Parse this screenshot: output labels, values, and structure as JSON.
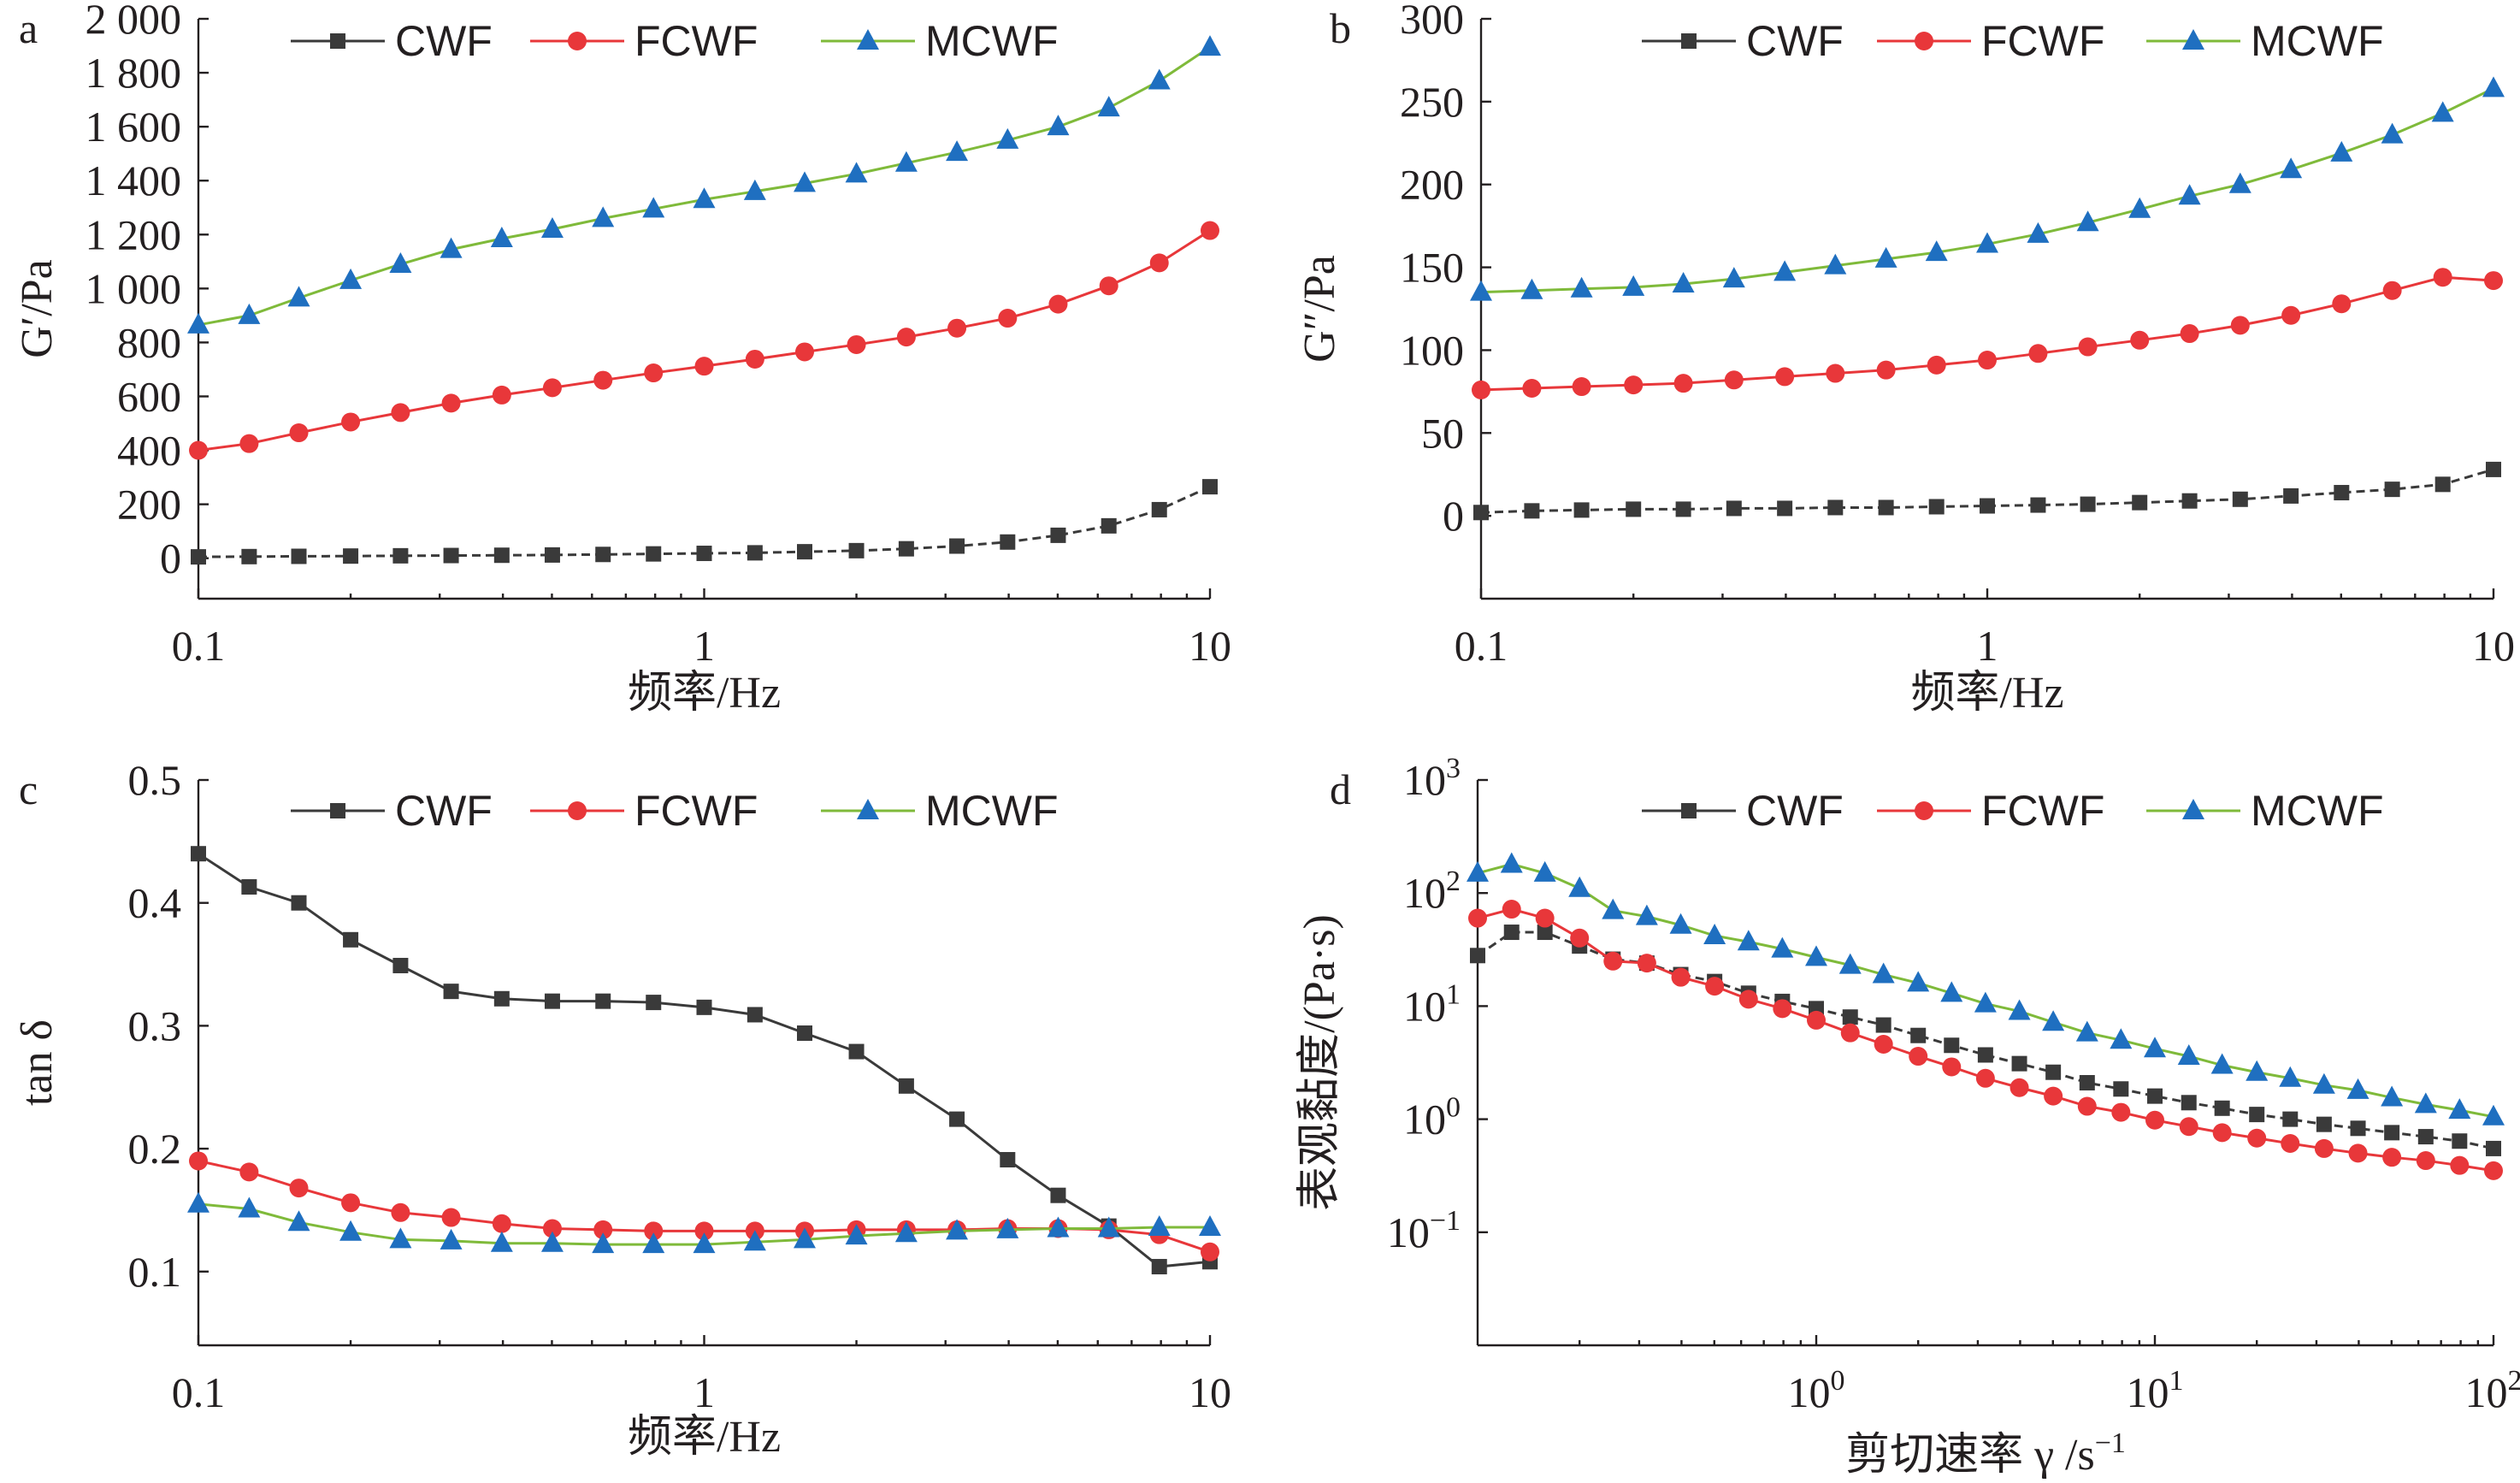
{
  "colors": {
    "CWF": "#3a3a3a",
    "FCWF": "#e8373a",
    "MCWF": "#7fba3a",
    "MCWF_marker": "#1f6fc0",
    "axis": "#231f20"
  },
  "chart_data": [
    {
      "panel": "a",
      "type": "line",
      "xscale": "log",
      "xlim": [
        0.1,
        10
      ],
      "ylim": [
        -150,
        2000
      ],
      "xticks": [
        "0.1",
        "1",
        "10"
      ],
      "yticks": [
        {
          "v": 0,
          "t": "0"
        },
        {
          "v": 200,
          "t": "200"
        },
        {
          "v": 400,
          "t": "400"
        },
        {
          "v": 600,
          "t": "600"
        },
        {
          "v": 800,
          "t": "800"
        },
        {
          "v": 1000,
          "t": "1 000"
        },
        {
          "v": 1200,
          "t": "1 200"
        },
        {
          "v": 1400,
          "t": "1 400"
        },
        {
          "v": 1600,
          "t": "1 600"
        },
        {
          "v": 1800,
          "t": "1 800"
        },
        {
          "v": 2000,
          "t": "2 000"
        }
      ],
      "xlabel": "频率/Hz",
      "ylabel": "G′/Pa",
      "legend": "top",
      "x": [
        0.1,
        0.126,
        0.158,
        0.2,
        0.251,
        0.316,
        0.398,
        0.501,
        0.631,
        0.794,
        1,
        1.26,
        1.58,
        2,
        2.51,
        3.16,
        3.98,
        5.01,
        6.31,
        7.94,
        10
      ],
      "series": [
        {
          "name": "CWF",
          "marker": "square",
          "values": [
            5,
            6,
            7,
            8,
            9,
            10,
            11,
            12,
            14,
            16,
            18,
            20,
            24,
            28,
            35,
            45,
            60,
            85,
            120,
            180,
            265
          ]
        },
        {
          "name": "FCWF",
          "marker": "circle",
          "values": [
            400,
            425,
            465,
            505,
            540,
            575,
            605,
            632,
            660,
            687,
            712,
            738,
            765,
            792,
            820,
            853,
            890,
            942,
            1010,
            1095,
            1215
          ]
        },
        {
          "name": "MCWF",
          "marker": "triangle",
          "values": [
            865,
            900,
            965,
            1030,
            1090,
            1145,
            1185,
            1220,
            1260,
            1295,
            1330,
            1360,
            1390,
            1425,
            1465,
            1505,
            1550,
            1600,
            1670,
            1770,
            1895
          ]
        }
      ]
    },
    {
      "panel": "b",
      "type": "line",
      "xscale": "log",
      "xlim": [
        0.1,
        10
      ],
      "ylim": [
        -50,
        300
      ],
      "xticks": [
        "0.1",
        "1",
        "10"
      ],
      "yticks": [
        {
          "v": 0,
          "t": "0"
        },
        {
          "v": 50,
          "t": "50"
        },
        {
          "v": 100,
          "t": "100"
        },
        {
          "v": 150,
          "t": "150"
        },
        {
          "v": 200,
          "t": "200"
        },
        {
          "v": 250,
          "t": "250"
        },
        {
          "v": 300,
          "t": "300"
        }
      ],
      "xlabel": "频率/Hz",
      "ylabel": "G″/Pa",
      "legend": "top",
      "x": [
        0.1,
        0.126,
        0.158,
        0.2,
        0.251,
        0.316,
        0.398,
        0.501,
        0.631,
        0.794,
        1,
        1.26,
        1.58,
        2,
        2.51,
        3.16,
        3.98,
        5.01,
        6.31,
        7.94,
        10
      ],
      "series": [
        {
          "name": "CWF",
          "marker": "square",
          "values": [
            2,
            3,
            3.5,
            4,
            4,
            4.5,
            4.5,
            5,
            5,
            5.5,
            6,
            6.5,
            7,
            8,
            9,
            10,
            12,
            14,
            16,
            19,
            28
          ]
        },
        {
          "name": "FCWF",
          "marker": "circle",
          "values": [
            76,
            77,
            78,
            79,
            80,
            82,
            84,
            86,
            88,
            91,
            94,
            98,
            102,
            106,
            110,
            115,
            121,
            128,
            136,
            144,
            142
          ]
        },
        {
          "name": "MCWF",
          "marker": "triangle",
          "values": [
            135,
            136,
            137,
            138,
            140,
            143,
            147,
            151,
            155,
            159,
            164,
            170,
            177,
            185,
            193,
            200,
            209,
            219,
            230,
            243,
            258
          ]
        }
      ]
    },
    {
      "panel": "c",
      "type": "line",
      "xscale": "log",
      "xlim": [
        0.1,
        10
      ],
      "ylim": [
        0.04,
        0.5
      ],
      "xticks": [
        "0.1",
        "1",
        "10"
      ],
      "yticks": [
        {
          "v": 0.1,
          "t": "0.1"
        },
        {
          "v": 0.2,
          "t": "0.2"
        },
        {
          "v": 0.3,
          "t": "0.3"
        },
        {
          "v": 0.4,
          "t": "0.4"
        },
        {
          "v": 0.5,
          "t": "0.5"
        }
      ],
      "xlabel": "频率/Hz",
      "ylabel": "tan δ",
      "legend": "top",
      "x": [
        0.1,
        0.126,
        0.158,
        0.2,
        0.251,
        0.316,
        0.398,
        0.501,
        0.631,
        0.794,
        1,
        1.26,
        1.58,
        2,
        2.51,
        3.16,
        3.98,
        5.01,
        6.31,
        7.94,
        10
      ],
      "series": [
        {
          "name": "CWF",
          "marker": "square",
          "values": [
            0.44,
            0.413,
            0.4,
            0.37,
            0.349,
            0.328,
            0.322,
            0.32,
            0.32,
            0.319,
            0.315,
            0.309,
            0.294,
            0.279,
            0.251,
            0.224,
            0.191,
            0.162,
            0.137,
            0.104,
            0.108
          ]
        },
        {
          "name": "FCWF",
          "marker": "circle",
          "values": [
            0.19,
            0.181,
            0.168,
            0.156,
            0.148,
            0.144,
            0.139,
            0.135,
            0.134,
            0.133,
            0.133,
            0.133,
            0.133,
            0.134,
            0.134,
            0.134,
            0.135,
            0.135,
            0.134,
            0.13,
            0.116
          ]
        },
        {
          "name": "MCWF",
          "marker": "triangle",
          "values": [
            0.155,
            0.151,
            0.14,
            0.132,
            0.126,
            0.125,
            0.123,
            0.123,
            0.122,
            0.122,
            0.122,
            0.124,
            0.126,
            0.129,
            0.131,
            0.133,
            0.134,
            0.135,
            0.135,
            0.136,
            0.136
          ]
        }
      ]
    },
    {
      "panel": "d",
      "type": "line",
      "xscale": "log",
      "yscale": "log",
      "xlim": [
        0.1,
        100
      ],
      "ylim": [
        0.01,
        1000
      ],
      "xticks": [
        {
          "v": 1,
          "base": "10",
          "exp": "0"
        },
        {
          "v": 10,
          "base": "10",
          "exp": "1"
        },
        {
          "v": 100,
          "base": "10",
          "exp": "2"
        }
      ],
      "yticks": [
        {
          "v": 1000,
          "base": "10",
          "exp": "3"
        },
        {
          "v": 100,
          "base": "10",
          "exp": "2"
        },
        {
          "v": 10,
          "base": "10",
          "exp": "1"
        },
        {
          "v": 1,
          "base": "10",
          "exp": "0"
        },
        {
          "v": 0.1,
          "base": "10",
          "exp": "−1"
        }
      ],
      "xlabel": "剪切速率 γ /s",
      "xlabel_exp": "−1",
      "ylabel": "表观黏度/(Pa·s)",
      "legend": "top",
      "x": [
        0.1,
        0.126,
        0.158,
        0.2,
        0.251,
        0.316,
        0.398,
        0.501,
        0.631,
        0.794,
        1,
        1.26,
        1.58,
        2,
        2.51,
        3.16,
        3.98,
        5.01,
        6.31,
        7.94,
        10,
        12.6,
        15.8,
        20,
        25.1,
        31.6,
        39.8,
        50.1,
        63.1,
        79.4,
        100
      ],
      "series": [
        {
          "name": "CWF",
          "marker": "square",
          "values": [
            28,
            45,
            45,
            34,
            26,
            24,
            19,
            16.5,
            13,
            11,
            9.5,
            8,
            6.8,
            5.5,
            4.5,
            3.7,
            3.1,
            2.6,
            2.1,
            1.85,
            1.6,
            1.4,
            1.25,
            1.1,
            1.0,
            0.9,
            0.83,
            0.76,
            0.7,
            0.64,
            0.55
          ]
        },
        {
          "name": "FCWF",
          "marker": "circle",
          "values": [
            60,
            72,
            60,
            40,
            25,
            24,
            18,
            15,
            11.5,
            9.5,
            7.5,
            5.8,
            4.6,
            3.6,
            2.9,
            2.3,
            1.9,
            1.6,
            1.3,
            1.15,
            0.98,
            0.86,
            0.76,
            0.68,
            0.61,
            0.55,
            0.5,
            0.46,
            0.43,
            0.39,
            0.35
          ]
        },
        {
          "name": "MCWF",
          "marker": "triangle",
          "values": [
            150,
            180,
            150,
            110,
            70,
            62,
            52,
            42,
            37,
            32,
            27,
            23,
            19,
            16,
            13,
            10.5,
            9,
            7.2,
            5.8,
            5,
            4.2,
            3.6,
            3,
            2.6,
            2.3,
            2,
            1.8,
            1.55,
            1.35,
            1.2,
            1.05
          ]
        }
      ]
    }
  ]
}
